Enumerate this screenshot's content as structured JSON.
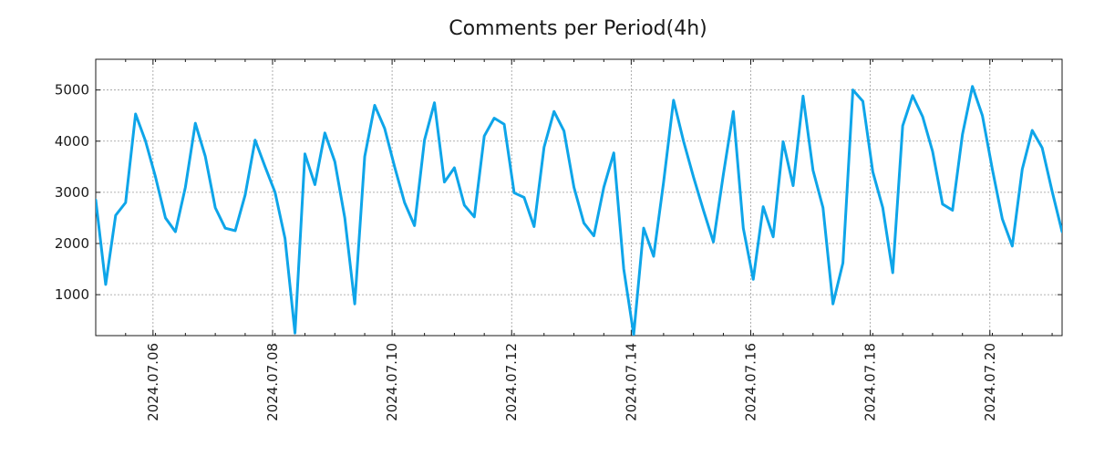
{
  "chart_data": {
    "type": "line",
    "title": "Comments per Period(4h)",
    "xlabel": "",
    "ylabel": "",
    "grid": true,
    "interval_hours": 4,
    "x_start": "2024-07-05T00:00",
    "ylim": [
      200,
      5600
    ],
    "y_ticks": [
      1000,
      2000,
      3000,
      4000,
      5000
    ],
    "x_ticks": [
      {
        "label": "2024.07.06",
        "index": 5.75
      },
      {
        "label": "2024.07.08",
        "index": 17.75
      },
      {
        "label": "2024.07.10",
        "index": 29.75
      },
      {
        "label": "2024.07.12",
        "index": 41.75
      },
      {
        "label": "2024.07.14",
        "index": 53.75
      },
      {
        "label": "2024.07.16",
        "index": 65.75
      },
      {
        "label": "2024.07.18",
        "index": 77.75
      },
      {
        "label": "2024.07.20",
        "index": 89.75
      }
    ],
    "series": [
      {
        "name": "Comments",
        "color": "#0ea5e9",
        "values": [
          2850,
          1200,
          2550,
          2800,
          4530,
          4000,
          3300,
          2500,
          2230,
          3100,
          4350,
          3700,
          2700,
          2300,
          2250,
          2950,
          4020,
          3500,
          3000,
          2100,
          250,
          3750,
          3150,
          4160,
          3600,
          2500,
          820,
          3700,
          4700,
          4250,
          3500,
          2800,
          2350,
          4020,
          4750,
          3200,
          3480,
          2750,
          2520,
          4100,
          4450,
          4330,
          2990,
          2900,
          2330,
          3880,
          4580,
          4200,
          3100,
          2400,
          2150,
          3100,
          3770,
          1500,
          220,
          2300,
          1750,
          3200,
          4800,
          4000,
          3300,
          2650,
          2030,
          3350,
          4580,
          2300,
          1300,
          2720,
          2130,
          3990,
          3130,
          4880,
          3430,
          2700,
          820,
          1620,
          5000,
          4780,
          3400,
          2700,
          1430,
          4300,
          4890,
          4480,
          3800,
          2770,
          2650,
          4130,
          5070,
          4500,
          3450,
          2480,
          1950,
          3450,
          4210,
          3870,
          3020,
          2230
        ]
      }
    ]
  }
}
